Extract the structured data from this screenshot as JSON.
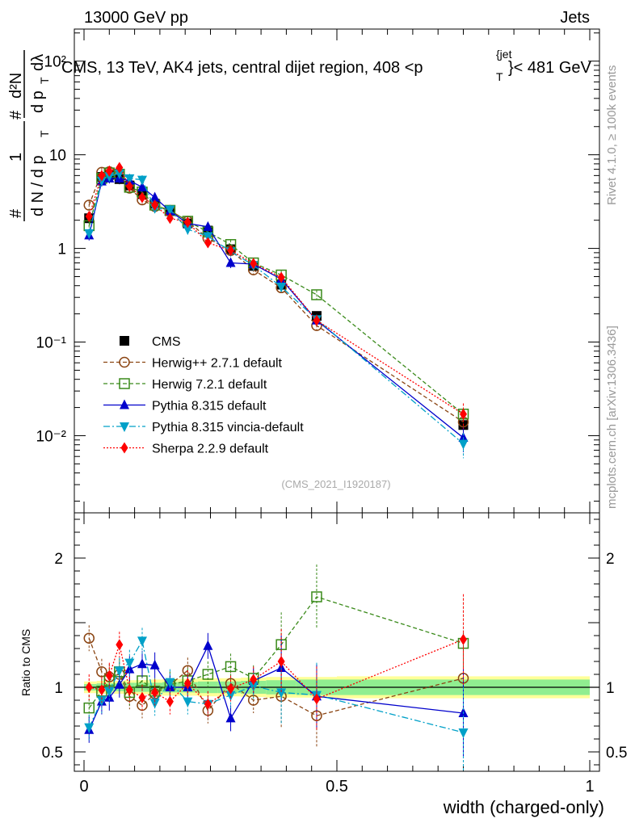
{
  "header": {
    "left": "13000 GeV pp",
    "right": "Jets",
    "title": "CMS, 13 TeV, AK4 jets, central dijet region, 408 <p",
    "title_sub": "T",
    "title_sup": "{jet",
    "title_end": "}< 481 GeV"
  },
  "side_labels": {
    "rivet": "Rivet 4.1.0, ≥ 100k events",
    "mcplots": "mcplots.cern.ch [arXiv:1306.3436]"
  },
  "ylabel": {
    "one": "1",
    "hash1": "#",
    "dN": "d N / d p",
    "T1": "T",
    "hash2": "#",
    "d2N": "d²N",
    "dpT": "d p",
    "T2": "T",
    "dlam": "dλ"
  },
  "watermark": "(CMS_2021_I1920187)",
  "colors": {
    "CMS": "#000000",
    "Herwig++ 2.7.1 default": "#8b4513",
    "Herwig 7.2.1 default": "#3a8a1a",
    "Pythia 8.315 default": "#0000cc",
    "Pythia 8.315 vincia-default": "#00a0c8",
    "Sherpa 2.2.9 default": "#ff0000",
    "band_inner": "#90ee90",
    "band_outer": "#ffff99"
  },
  "chart_data": [
    {
      "type": "scatter",
      "scale": "log",
      "title": "CMS, 13 TeV, AK4 jets, central dijet region, 408 <p_T^{jet}< 481 GeV",
      "xlabel": "width (charged-only)",
      "ylabel": "1/dN/dpT  d²N/dpT dλ",
      "xlim": [
        0,
        1
      ],
      "ylim": [
        0.0015,
        220
      ],
      "yticks": [
        0.01,
        0.1,
        1,
        10,
        100
      ],
      "ytick_labels": [
        "10⁻²",
        "10⁻¹",
        "1",
        "10",
        "10²"
      ],
      "legend_position": "bottom-left",
      "x": [
        0.01,
        0.035,
        0.05,
        0.07,
        0.09,
        0.115,
        0.14,
        0.17,
        0.205,
        0.245,
        0.29,
        0.335,
        0.39,
        0.46,
        0.75
      ],
      "series": [
        {
          "name": "CMS",
          "marker": "square",
          "values": [
            2.1,
            5.8,
            6.1,
            5.5,
            4.7,
            3.8,
            3.0,
            2.5,
            1.85,
            1.55,
            0.98,
            0.65,
            0.41,
            0.19,
            0.013
          ]
        },
        {
          "name": "Herwig++ 2.7.1 default",
          "marker": "circle-open",
          "values": [
            2.9,
            6.5,
            6.6,
            6.1,
            4.4,
            3.3,
            2.8,
            2.55,
            1.95,
            1.28,
            0.95,
            0.59,
            0.38,
            0.15,
            0.014
          ]
        },
        {
          "name": "Herwig 7.2.1 default",
          "marker": "square-open",
          "values": [
            1.75,
            5.6,
            6.4,
            6.2,
            4.5,
            4.0,
            2.9,
            2.55,
            1.95,
            1.5,
            1.1,
            0.7,
            0.52,
            0.32,
            0.017
          ]
        },
        {
          "name": "Pythia 8.315 default",
          "marker": "triangle-up",
          "values": [
            1.38,
            5.2,
            5.6,
            5.6,
            5.3,
            4.5,
            3.5,
            2.5,
            1.85,
            1.7,
            0.7,
            0.68,
            0.47,
            0.17,
            0.0095
          ]
        },
        {
          "name": "Pythia 8.315 vincia-default",
          "marker": "triangle-down",
          "values": [
            1.45,
            5.3,
            5.9,
            6.3,
            5.6,
            5.4,
            2.7,
            2.6,
            1.6,
            1.35,
            0.93,
            0.66,
            0.39,
            0.175,
            0.0082
          ]
        },
        {
          "name": "Sherpa 2.2.9 default",
          "marker": "diamond",
          "values": [
            2.2,
            6.0,
            6.7,
            7.3,
            4.6,
            3.5,
            2.9,
            2.1,
            1.9,
            1.15,
            0.95,
            0.69,
            0.49,
            0.17,
            0.017
          ]
        }
      ]
    },
    {
      "type": "scatter",
      "scale": "linear",
      "ylabel": "Ratio to CMS",
      "xlabel": "width (charged-only)",
      "xlim": [
        0,
        1
      ],
      "ylim": [
        0.35,
        2.35
      ],
      "yticks": [
        0.5,
        1,
        2
      ],
      "ytick_labels": [
        "0.5",
        "1",
        "2"
      ],
      "xticks": [
        0,
        0.5,
        1
      ],
      "xtick_labels": [
        "0",
        "0.5",
        "1"
      ],
      "band_edges": [
        0,
        0.025,
        0.045,
        0.06,
        0.08,
        0.1,
        0.13,
        0.155,
        0.185,
        0.225,
        0.265,
        0.31,
        0.36,
        0.42,
        0.5,
        1.0
      ],
      "band_inner_halfwidth": [
        0.025,
        0.03,
        0.03,
        0.03,
        0.035,
        0.035,
        0.035,
        0.04,
        0.04,
        0.045,
        0.045,
        0.05,
        0.055,
        0.06,
        0.06
      ],
      "band_outer_halfwidth": [
        0.045,
        0.05,
        0.05,
        0.05,
        0.055,
        0.055,
        0.06,
        0.065,
        0.065,
        0.07,
        0.07,
        0.075,
        0.08,
        0.08,
        0.085
      ],
      "x": [
        0.01,
        0.035,
        0.05,
        0.07,
        0.09,
        0.115,
        0.14,
        0.17,
        0.205,
        0.245,
        0.29,
        0.335,
        0.39,
        0.46,
        0.75
      ],
      "series": [
        {
          "name": "Herwig++ 2.7.1 default",
          "values": [
            1.38,
            1.12,
            1.08,
            1.1,
            0.93,
            0.86,
            0.95,
            1.02,
            1.13,
            0.82,
            1.03,
            0.9,
            0.93,
            0.78,
            1.07
          ]
        },
        {
          "name": "Herwig 7.2.1 default",
          "values": [
            0.84,
            0.97,
            1.05,
            1.12,
            0.96,
            1.05,
            0.97,
            1.02,
            1.05,
            1.1,
            1.16,
            1.07,
            1.33,
            1.7,
            1.34
          ]
        },
        {
          "name": "Pythia 8.315 default",
          "values": [
            0.67,
            0.89,
            0.92,
            1.02,
            1.14,
            1.18,
            1.17,
            1.0,
            1.0,
            1.32,
            0.76,
            1.05,
            1.15,
            0.93,
            0.8
          ]
        },
        {
          "name": "Pythia 8.315 vincia-default",
          "values": [
            0.69,
            0.9,
            0.97,
            1.13,
            1.19,
            1.36,
            0.88,
            1.04,
            0.89,
            0.87,
            0.94,
            1.01,
            0.96,
            0.94,
            0.65
          ]
        },
        {
          "name": "Sherpa 2.2.9 default",
          "values": [
            1.0,
            0.98,
            1.09,
            1.33,
            0.98,
            0.92,
            0.96,
            0.89,
            1.03,
            0.87,
            0.99,
            1.06,
            1.2,
            0.91,
            1.37
          ]
        }
      ]
    }
  ]
}
